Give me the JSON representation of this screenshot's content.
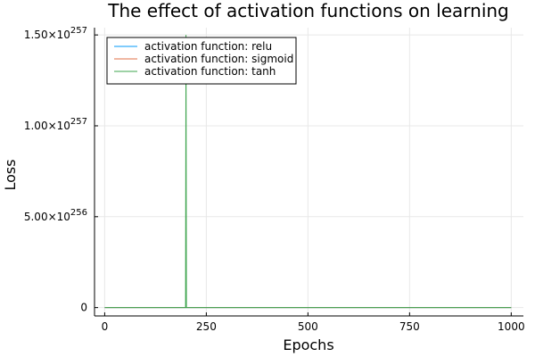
{
  "chart_data": {
    "type": "line",
    "title": "The effect of activation functions on learning",
    "xlabel": "Epochs",
    "ylabel": "Loss",
    "xlim": [
      -25,
      1030
    ],
    "ylim": [
      -4.6e+255,
      1.54e+257
    ],
    "xticks": [
      0,
      250,
      500,
      750,
      1000
    ],
    "xtick_labels": [
      "0",
      "250",
      "500",
      "750",
      "1000"
    ],
    "yticks": [
      0,
      5e+256,
      1e+257,
      1.5e+257
    ],
    "ytick_labels": [
      {
        "mantissa": "0",
        "exponent": ""
      },
      {
        "mantissa": "5.00×10",
        "exponent": "256"
      },
      {
        "mantissa": "1.00×10",
        "exponent": "257"
      },
      {
        "mantissa": "1.50×10",
        "exponent": "257"
      }
    ],
    "grid": true,
    "legend_position": "top-left",
    "series": [
      {
        "name": "activation function: relu",
        "color": "#009af9",
        "points": [
          [
            0,
            0
          ],
          [
            1000,
            0
          ]
        ]
      },
      {
        "name": "activation function: sigmoid",
        "color": "#e26f46",
        "points": [
          [
            0,
            0
          ],
          [
            1000,
            0
          ]
        ]
      },
      {
        "name": "activation function: tanh",
        "color": "#3da44d",
        "points": [
          [
            0,
            0
          ],
          [
            199,
            0
          ],
          [
            200,
            1.5e+257
          ],
          [
            201,
            0
          ],
          [
            1000,
            0
          ]
        ]
      }
    ]
  }
}
